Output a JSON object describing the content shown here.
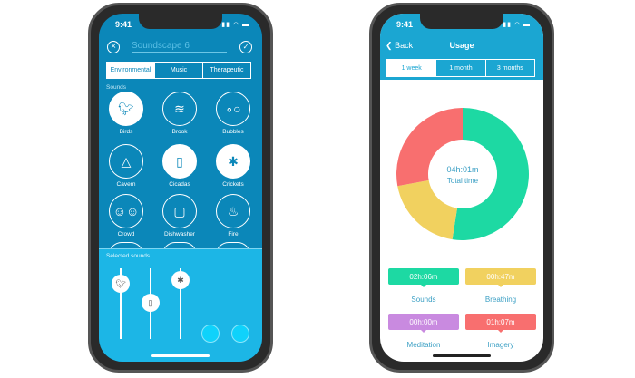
{
  "status_time": "9:41",
  "soundscape": {
    "title": "Soundscape 6",
    "tabs": [
      {
        "label": "Environmental",
        "active": true
      },
      {
        "label": "Music"
      },
      {
        "label": "Therapeutic"
      }
    ],
    "section_label": "Sounds",
    "sounds": [
      {
        "label": "Birds",
        "selected": true,
        "icon": "bird-icon"
      },
      {
        "label": "Brook",
        "selected": false,
        "icon": "waves-icon"
      },
      {
        "label": "Bubbles",
        "selected": false,
        "icon": "bubbles-icon"
      },
      {
        "label": "Cavern",
        "selected": false,
        "icon": "cavern-icon"
      },
      {
        "label": "Cicadas",
        "selected": true,
        "icon": "cicada-icon"
      },
      {
        "label": "Crickets",
        "selected": true,
        "icon": "cricket-icon"
      },
      {
        "label": "Crowd",
        "selected": false,
        "icon": "crowd-icon"
      },
      {
        "label": "Dishwasher",
        "selected": false,
        "icon": "dishwasher-icon"
      },
      {
        "label": "Fire",
        "selected": false,
        "icon": "fire-icon"
      }
    ],
    "selected_label": "Selected sounds",
    "colors": {
      "bg": "#0b87b9",
      "panel": "#1cb6e6"
    }
  },
  "usage": {
    "back_label": "Back",
    "title": "Usage",
    "tabs": [
      {
        "label": "1 week",
        "active": true
      },
      {
        "label": "1 month"
      },
      {
        "label": "3 months"
      }
    ],
    "total_value": "04h:01m",
    "total_label": "Total time",
    "categories": [
      {
        "label": "Sounds",
        "value": "02h:06m",
        "minutes": 126,
        "color": "#1dd9a3"
      },
      {
        "label": "Breathing",
        "value": "00h:47m",
        "minutes": 47,
        "color": "#f1d15f"
      },
      {
        "label": "Meditation",
        "value": "00h:00m",
        "minutes": 0,
        "color": "#c98ae0"
      },
      {
        "label": "Imagery",
        "value": "01h:07m",
        "minutes": 67,
        "color": "#f86f6f"
      }
    ],
    "colors": {
      "header": "#1ba6d2"
    }
  }
}
